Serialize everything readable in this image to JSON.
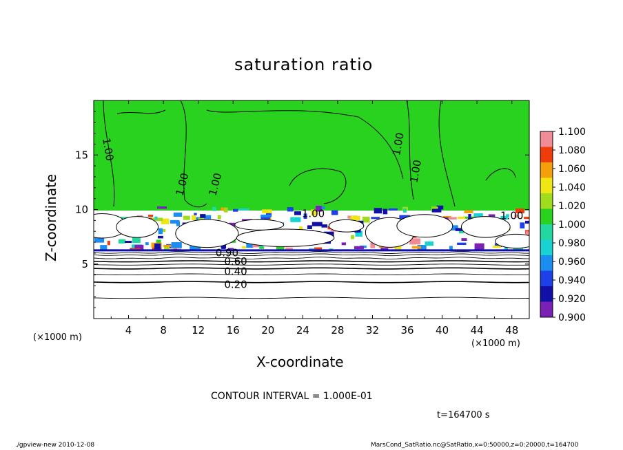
{
  "figure": {
    "title": "saturation ratio",
    "x_unit_left": "(×1000 m)",
    "x_unit_right": "(×1000 m)",
    "contour_interval": "CONTOUR INTERVAL = 1.000E-01",
    "time": "t=164700 s",
    "footer_left": "./gpview-new   2010-12-08",
    "footer_right": "MarsCond_SatRatio.nc@SatRatio,x=0:50000,z=0:20000,t=164700"
  },
  "chart_data": {
    "type": "heatmap",
    "title": "saturation ratio",
    "xlabel": "X-coordinate",
    "ylabel": "Z-coordinate",
    "x_unit": "(×1000 m)",
    "xlim": [
      0,
      50
    ],
    "ylim": [
      0,
      20
    ],
    "x_ticks": [
      4,
      8,
      12,
      16,
      20,
      24,
      28,
      32,
      36,
      40,
      44,
      48
    ],
    "y_ticks": [
      5,
      10,
      15
    ],
    "colorbar": {
      "levels": [
        0.9,
        0.92,
        0.94,
        0.96,
        0.98,
        1.0,
        1.02,
        1.04,
        1.06,
        1.08,
        1.1
      ],
      "labels": [
        "0.900",
        "0.920",
        "0.940",
        "0.960",
        "0.980",
        "1.000",
        "1.020",
        "1.040",
        "1.060",
        "1.080",
        "1.100"
      ],
      "colors": [
        "#7b20b4",
        "#1010a8",
        "#1e40e8",
        "#1b8cf0",
        "#19d2d2",
        "#20d8a0",
        "#28d21e",
        "#a0dc1e",
        "#f0e614",
        "#f5a00a",
        "#f03c0a",
        "#f08c96"
      ]
    },
    "upper_region_value": 1.0,
    "upper_region_color": "#28d21e",
    "cloud_color": "#ffffff",
    "contour_labels": [
      {
        "text": "1.00",
        "x": 1.6,
        "z": 15.5,
        "rotate": 80
      },
      {
        "text": "1.00",
        "x": 10.2,
        "z": 12.3,
        "rotate": -75
      },
      {
        "text": "1.00",
        "x": 14.0,
        "z": 12.3,
        "rotate": -75
      },
      {
        "text": "1.00",
        "x": 35.0,
        "z": 16.0,
        "rotate": -80
      },
      {
        "text": "1.00",
        "x": 37.0,
        "z": 13.5,
        "rotate": -80
      },
      {
        "text": "1.00",
        "x": 25.2,
        "z": 9.6,
        "rotate": 0
      },
      {
        "text": "1.00",
        "x": 48.0,
        "z": 9.4,
        "rotate": 0
      },
      {
        "text": "0.90",
        "x": 15.3,
        "z": 6.0,
        "rotate": 0
      },
      {
        "text": "0.60",
        "x": 16.3,
        "z": 5.2,
        "rotate": 0
      },
      {
        "text": "0.40",
        "x": 16.3,
        "z": 4.3,
        "rotate": 0
      },
      {
        "text": "0.20",
        "x": 16.3,
        "z": 3.1,
        "rotate": 0
      }
    ],
    "lower_contour_levels": [
      {
        "level": 0.9,
        "z": 6.05
      },
      {
        "level": 0.8,
        "z": 5.85
      },
      {
        "level": 0.7,
        "z": 5.55
      },
      {
        "level": 0.6,
        "z": 5.25
      },
      {
        "level": 0.5,
        "z": 4.95
      },
      {
        "level": 0.4,
        "z": 4.6
      },
      {
        "level": 0.3,
        "z": 4.05
      },
      {
        "level": 0.2,
        "z": 3.35
      },
      {
        "level": 0.1,
        "z": 1.9
      }
    ]
  }
}
